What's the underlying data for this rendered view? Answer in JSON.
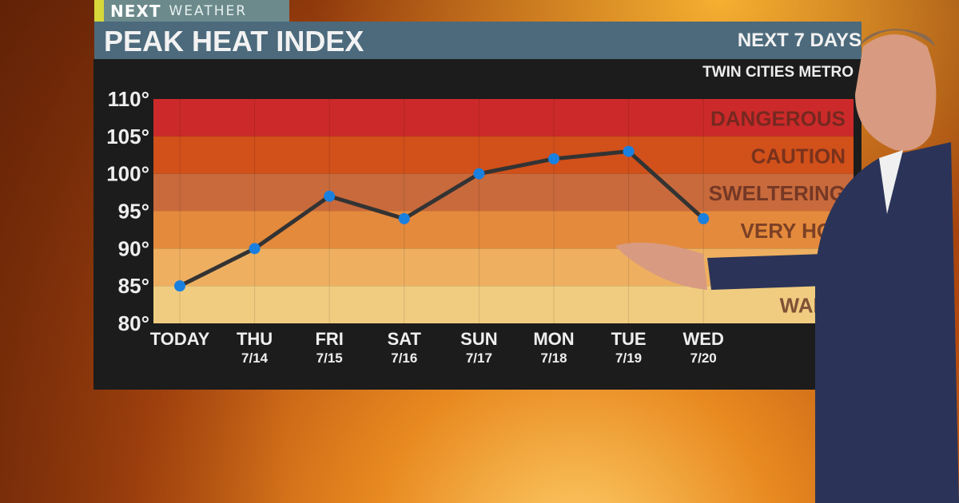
{
  "header": {
    "logo_next": "NEXT",
    "logo_weather": "WEATHER",
    "title": "PEAK HEAT INDEX",
    "range": "NEXT 7 DAYS",
    "location": "TWIN CITIES METRO"
  },
  "chart_data": {
    "type": "line",
    "title": "PEAK HEAT INDEX",
    "ylim": [
      80,
      110
    ],
    "yticks": [
      "80°",
      "85°",
      "90°",
      "95°",
      "100°",
      "105°",
      "110°"
    ],
    "categories": [
      "TODAY",
      "THU",
      "FRI",
      "SAT",
      "SUN",
      "MON",
      "TUE",
      "WED"
    ],
    "dates": [
      "",
      "7/14",
      "7/15",
      "7/16",
      "7/17",
      "7/18",
      "7/19",
      "7/20"
    ],
    "values": [
      85,
      90,
      97,
      94,
      100,
      102,
      103,
      94
    ],
    "bands": [
      {
        "from": 105,
        "to": 110,
        "label": "DANGEROUS",
        "color": "#cc2a2a"
      },
      {
        "from": 100,
        "to": 105,
        "label": "CAUTION",
        "color": "#d2501a"
      },
      {
        "from": 95,
        "to": 100,
        "label": "SWELTERING",
        "color": "#c86a3c"
      },
      {
        "from": 90,
        "to": 95,
        "label": "VERY HOT",
        "color": "#e48a3c"
      },
      {
        "from": 85,
        "to": 90,
        "label": "",
        "color": "#eeb060"
      },
      {
        "from": 80,
        "to": 85,
        "label": "WARM",
        "color": "#f0cc80"
      }
    ],
    "line_color": "#333333",
    "point_color": "#1a80e0"
  }
}
